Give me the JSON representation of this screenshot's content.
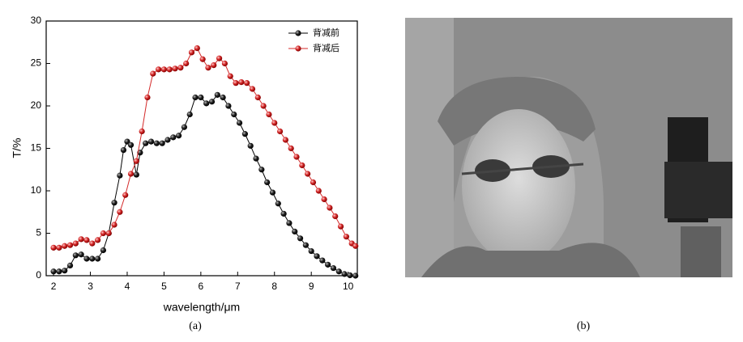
{
  "chart_data": {
    "type": "line",
    "xlabel": "wavelength/μm",
    "ylabel": "T/%",
    "xlim": [
      1.8,
      10.25
    ],
    "ylim": [
      0,
      30
    ],
    "xticks": [
      2,
      3,
      4,
      5,
      6,
      7,
      8,
      9,
      10
    ],
    "yticks": [
      0,
      5,
      10,
      15,
      20,
      25,
      30
    ],
    "legend": "upper right",
    "series": [
      {
        "name": "背减前",
        "color": "#000000",
        "x": [
          2.0,
          2.15,
          2.3,
          2.45,
          2.6,
          2.75,
          2.9,
          3.05,
          3.2,
          3.35,
          3.5,
          3.65,
          3.8,
          3.9,
          4.0,
          4.1,
          4.25,
          4.35,
          4.5,
          4.65,
          4.8,
          4.95,
          5.1,
          5.25,
          5.4,
          5.55,
          5.7,
          5.85,
          6.0,
          6.15,
          6.3,
          6.45,
          6.6,
          6.75,
          6.9,
          7.05,
          7.2,
          7.35,
          7.5,
          7.65,
          7.8,
          7.95,
          8.1,
          8.25,
          8.4,
          8.55,
          8.7,
          8.85,
          9.0,
          9.15,
          9.3,
          9.45,
          9.6,
          9.75,
          9.9,
          10.05,
          10.2
        ],
        "values": [
          0.5,
          0.5,
          0.6,
          1.2,
          2.4,
          2.5,
          2.0,
          2.0,
          2.0,
          3.0,
          5.0,
          8.6,
          11.8,
          14.8,
          15.8,
          15.4,
          11.9,
          14.5,
          15.6,
          15.8,
          15.6,
          15.6,
          16.0,
          16.3,
          16.5,
          17.5,
          19.0,
          21.0,
          21.0,
          20.3,
          20.5,
          21.3,
          21.0,
          20.0,
          19.0,
          18.0,
          16.7,
          15.3,
          13.8,
          12.5,
          11.0,
          9.8,
          8.5,
          7.3,
          6.2,
          5.2,
          4.4,
          3.6,
          2.9,
          2.3,
          1.8,
          1.3,
          0.9,
          0.5,
          0.2,
          0.05,
          0
        ]
      },
      {
        "name": "背减后",
        "color": "#d42a2a",
        "x": [
          2.0,
          2.15,
          2.3,
          2.45,
          2.6,
          2.75,
          2.9,
          3.05,
          3.2,
          3.35,
          3.5,
          3.65,
          3.8,
          3.95,
          4.1,
          4.25,
          4.4,
          4.55,
          4.7,
          4.85,
          5.0,
          5.15,
          5.3,
          5.45,
          5.6,
          5.75,
          5.9,
          6.05,
          6.2,
          6.35,
          6.5,
          6.65,
          6.8,
          6.95,
          7.1,
          7.25,
          7.4,
          7.55,
          7.7,
          7.85,
          8.0,
          8.15,
          8.3,
          8.45,
          8.6,
          8.75,
          8.9,
          9.05,
          9.2,
          9.35,
          9.5,
          9.65,
          9.8,
          9.95,
          10.1,
          10.2
        ],
        "values": [
          3.3,
          3.3,
          3.5,
          3.6,
          3.8,
          4.3,
          4.2,
          3.8,
          4.2,
          5.0,
          5.0,
          6.0,
          7.5,
          9.5,
          12.0,
          13.5,
          17.0,
          21.0,
          23.8,
          24.3,
          24.3,
          24.3,
          24.4,
          24.5,
          25.0,
          26.3,
          26.8,
          25.5,
          24.5,
          24.8,
          25.6,
          25.0,
          23.5,
          22.7,
          22.8,
          22.7,
          22.0,
          21.0,
          20.0,
          19.0,
          18.0,
          17.0,
          16.0,
          15.0,
          14.0,
          13.0,
          12.0,
          11.0,
          10.0,
          9.0,
          8.0,
          7.0,
          5.8,
          4.6,
          3.8,
          3.5
        ]
      }
    ]
  },
  "captions": [
    "(a)",
    "(b)"
  ]
}
